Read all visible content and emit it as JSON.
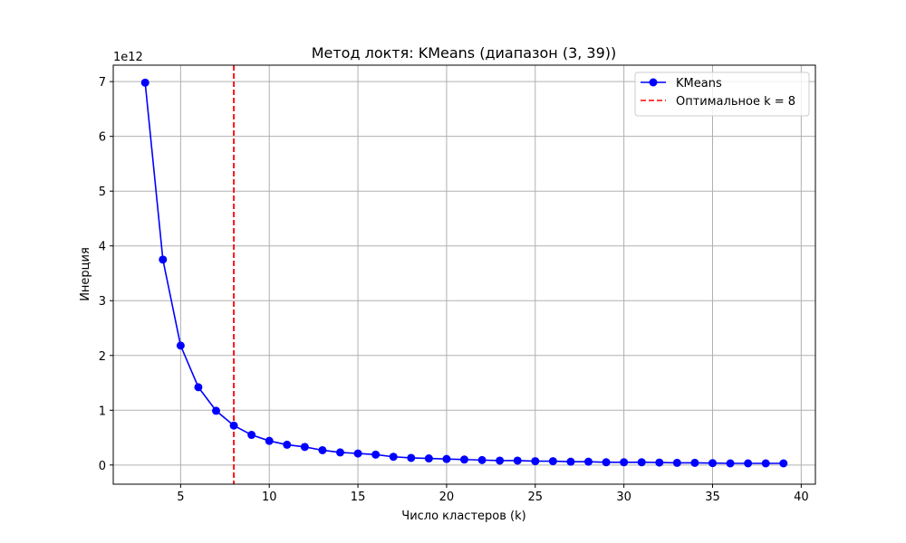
{
  "chart_data": {
    "type": "line",
    "title": "Метод локтя: KMeans (диапазон (3, 39))",
    "xlabel": "Число кластеров (k)",
    "ylabel": "Инерция",
    "y_offset_label": "1e12",
    "y_scale": 1000000000000.0,
    "xlim": [
      1.2,
      40.8
    ],
    "ylim": [
      -0.35,
      7.3
    ],
    "x_ticks": [
      5,
      10,
      15,
      20,
      25,
      30,
      35,
      40
    ],
    "y_ticks": [
      0,
      1,
      2,
      3,
      4,
      5,
      6,
      7
    ],
    "grid": true,
    "legend_position": "top-right",
    "series": [
      {
        "name": "KMeans",
        "color": "#0000ff",
        "marker": "circle",
        "x": [
          3,
          4,
          5,
          6,
          7,
          8,
          9,
          10,
          11,
          12,
          13,
          14,
          15,
          16,
          17,
          18,
          19,
          20,
          21,
          22,
          23,
          24,
          25,
          26,
          27,
          28,
          29,
          30,
          31,
          32,
          33,
          34,
          35,
          36,
          37,
          38,
          39
        ],
        "y": [
          6.98,
          3.75,
          2.18,
          1.42,
          0.99,
          0.72,
          0.55,
          0.44,
          0.37,
          0.33,
          0.27,
          0.23,
          0.21,
          0.19,
          0.15,
          0.13,
          0.12,
          0.11,
          0.1,
          0.09,
          0.08,
          0.08,
          0.07,
          0.07,
          0.06,
          0.06,
          0.05,
          0.05,
          0.05,
          0.045,
          0.04,
          0.04,
          0.035,
          0.03,
          0.03,
          0.03,
          0.03
        ]
      }
    ],
    "vline": {
      "name": "Оптимальное k = 8",
      "x": 8,
      "color": "#ff0000",
      "style": "dashed"
    }
  }
}
